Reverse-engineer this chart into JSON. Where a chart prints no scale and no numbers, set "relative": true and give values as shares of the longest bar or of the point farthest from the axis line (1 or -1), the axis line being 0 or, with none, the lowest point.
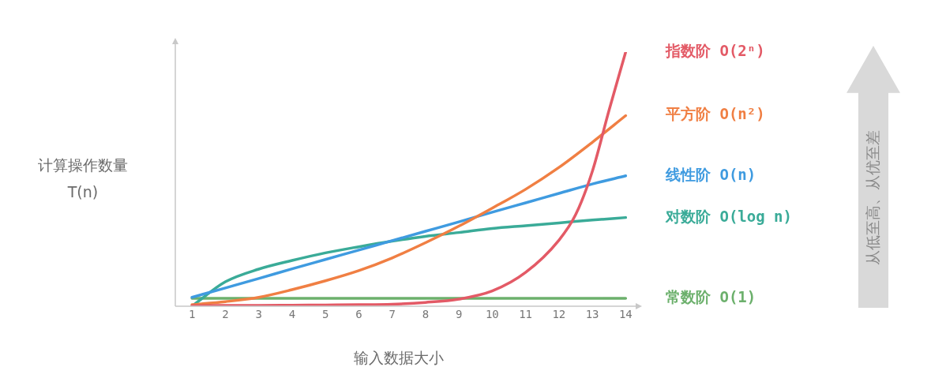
{
  "chart_data": {
    "type": "line",
    "xlabel": "输入数据大小",
    "ylabel": "计算操作数量\nT(n)",
    "relative": true,
    "x": [
      1,
      2,
      3,
      4,
      5,
      6,
      7,
      8,
      9,
      10,
      11,
      12,
      13,
      14
    ],
    "xlim": [
      0.5,
      14.3
    ],
    "xticks": [
      1,
      2,
      3,
      4,
      5,
      6,
      7,
      8,
      9,
      10,
      11,
      12,
      13,
      14
    ],
    "grid": false,
    "legend": false,
    "marker": "none",
    "line_style": "solid",
    "annotations": [
      "从低至高、从优至差"
    ],
    "series": [
      {
        "name": "指数阶 O(2ⁿ)",
        "color": "#e35a66",
        "x": [
          1,
          2,
          3,
          4,
          5,
          6,
          7,
          8,
          9,
          10,
          11,
          12,
          12.5,
          13,
          13.5,
          14
        ],
        "values": [
          0.002,
          0.003,
          0.003,
          0.004,
          0.005,
          0.006,
          0.008,
          0.015,
          0.028,
          0.06,
          0.133,
          0.26,
          0.36,
          0.53,
          0.77,
          1
        ]
      },
      {
        "name": "平方阶 O(n²)",
        "color": "#f07f43",
        "values": [
          0.006,
          0.018,
          0.035,
          0.065,
          0.1,
          0.14,
          0.19,
          0.25,
          0.315,
          0.386,
          0.46,
          0.546,
          0.645,
          0.75
        ]
      },
      {
        "name": "线性阶 O(n)",
        "color": "#3f9be0",
        "values": [
          0.035,
          0.072,
          0.109,
          0.147,
          0.184,
          0.221,
          0.258,
          0.295,
          0.332,
          0.37,
          0.407,
          0.444,
          0.481,
          0.513
        ]
      },
      {
        "name": "对数阶 O(log n)",
        "color": "#3aab98",
        "values": [
          0,
          0.096,
          0.146,
          0.18,
          0.21,
          0.234,
          0.256,
          0.275,
          0.29,
          0.306,
          0.317,
          0.328,
          0.339,
          0.349
        ]
      },
      {
        "name": "常数阶 O(1)",
        "color": "#6cb06c",
        "values": [
          0.031,
          0.031,
          0.031,
          0.031,
          0.031,
          0.031,
          0.031,
          0.031,
          0.031,
          0.031,
          0.031,
          0.031,
          0.031,
          0.031
        ]
      }
    ]
  }
}
